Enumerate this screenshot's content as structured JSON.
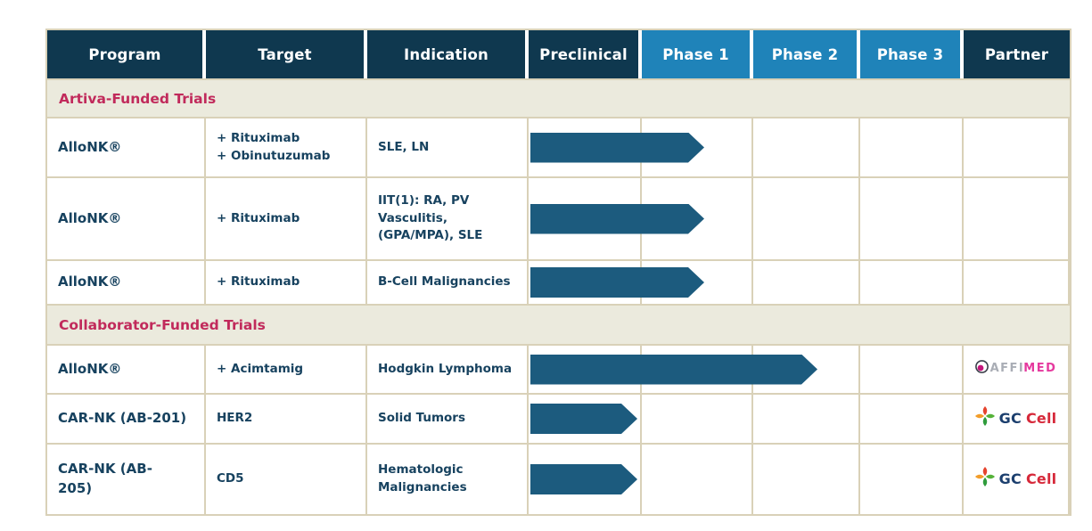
{
  "table": {
    "columns": [
      {
        "key": "program",
        "label": "Program",
        "style": "dark"
      },
      {
        "key": "target",
        "label": "Target",
        "style": "dark"
      },
      {
        "key": "indication",
        "label": "Indication",
        "style": "dark"
      },
      {
        "key": "preclinical",
        "label": "Preclinical",
        "style": "dark"
      },
      {
        "key": "phase1",
        "label": "Phase 1",
        "style": "blue"
      },
      {
        "key": "phase2",
        "label": "Phase 2",
        "style": "blue"
      },
      {
        "key": "phase3",
        "label": "Phase 3",
        "style": "blue"
      },
      {
        "key": "partner",
        "label": "Partner",
        "style": "dark"
      }
    ],
    "sections": [
      {
        "title": "Artiva-Funded Trials",
        "rows": [
          {
            "program": "AlloNK®",
            "target": "+ Rituximab\n+ Obinutuzumab",
            "indication": "SLE, LN",
            "arrow_extent": 1.6,
            "partner": null
          },
          {
            "program": "AlloNK®",
            "target": "+ Rituximab",
            "indication": "IIT(1): RA, PV\nVasculitis,\n(GPA/MPA), SLE",
            "arrow_extent": 1.6,
            "partner": null
          },
          {
            "program": "AlloNK®",
            "target": "+ Rituximab",
            "indication": "B-Cell Malignancies",
            "arrow_extent": 1.6,
            "partner": null
          }
        ]
      },
      {
        "title": "Collaborator-Funded Trials",
        "rows": [
          {
            "program": "AlloNK®",
            "target": "+ Acimtamig",
            "indication": "Hodgkin Lymphoma",
            "arrow_extent": 2.64,
            "partner": "affimed"
          },
          {
            "program": "CAR-NK (AB-201)",
            "target": "HER2",
            "indication": "Solid Tumors",
            "arrow_extent": 0.98,
            "partner": "gccell"
          },
          {
            "program": "CAR-NK (AB-\n205)",
            "target": "CD5",
            "indication": "Hematologic\nMalignancies",
            "arrow_extent": 0.98,
            "partner": "gccell"
          }
        ]
      }
    ],
    "partners": {
      "affimed": {
        "part1": "AFFI",
        "part2": "MED",
        "icon": "affimed-sphere-icon"
      },
      "gccell": {
        "part1": "GC",
        "part2": "Cell",
        "icon": "gc-cross-icon"
      }
    },
    "colors": {
      "header_dark": "#0f384f",
      "header_blue": "#1f83b9",
      "arrow": "#1c5b7e",
      "section_bg": "#ebeadd",
      "section_text": "#c12a5b",
      "grid_border": "#d9d1b8",
      "cell_text": "#17425f",
      "affimed_gray": "#a9adb5",
      "affimed_magenta": "#e5399e",
      "gc_navy": "#1c3f6e",
      "gc_red": "#d6293a"
    }
  }
}
